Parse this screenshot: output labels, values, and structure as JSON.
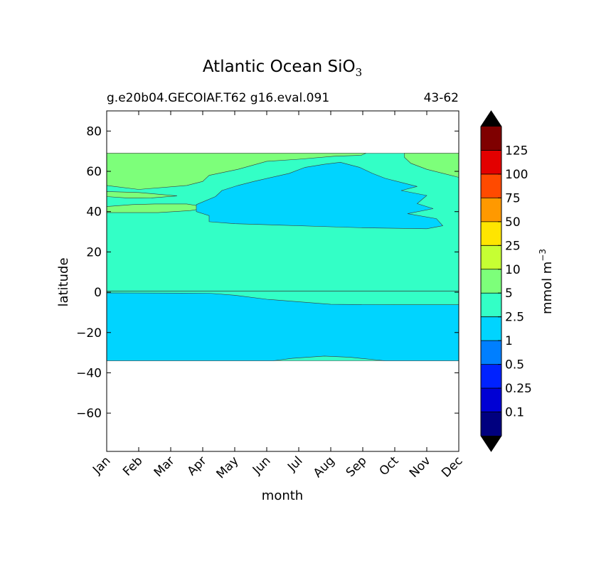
{
  "chart_data": {
    "type": "contour",
    "title": "Atlantic Ocean SiO",
    "title_subscript": "3",
    "subtitle_left": "g.e20b04.GECOIAF.T62 g16.eval.091",
    "subtitle_right": "43-62",
    "xlabel": "month",
    "ylabel": "latitude",
    "x_categories": [
      "Jan",
      "Feb",
      "Mar",
      "Apr",
      "May",
      "Jun",
      "Jul",
      "Aug",
      "Sep",
      "Oct",
      "Nov",
      "Dec"
    ],
    "yticks": [
      80,
      60,
      40,
      20,
      0,
      -20,
      -40,
      -60
    ],
    "ytick_labels": [
      "80",
      "60",
      "40",
      "20",
      "0",
      "−20",
      "−40",
      "−60"
    ],
    "ylim": [
      -79,
      90
    ],
    "data_extent": {
      "lat_min": -34,
      "lat_max": 69
    },
    "regions": [
      {
        "level": "2.5-5",
        "color": "#33ffc6",
        "note": "background fill from -34 to 69",
        "points": [
          [
            1,
            69
          ],
          [
            12,
            69
          ],
          [
            12,
            -34
          ],
          [
            1,
            -34
          ]
        ]
      },
      {
        "level": "5-10",
        "color": "#7dff7a",
        "note": "northern high latitude band",
        "points": [
          [
            1,
            69
          ],
          [
            9.1,
            69
          ],
          [
            8.95,
            68
          ],
          [
            8.1,
            67.5
          ],
          [
            7,
            66
          ],
          [
            6,
            65
          ],
          [
            5.1,
            61
          ],
          [
            4.2,
            58
          ],
          [
            4.0,
            55
          ],
          [
            3.5,
            53
          ],
          [
            2,
            51
          ],
          [
            1,
            53
          ]
        ]
      },
      {
        "level": "5-10",
        "color": "#7dff7a",
        "note": "north-eastern corner",
        "points": [
          [
            10.3,
            69
          ],
          [
            12,
            69
          ],
          [
            12,
            57
          ],
          [
            11,
            61
          ],
          [
            10.5,
            64
          ],
          [
            10.3,
            67
          ]
        ]
      },
      {
        "level": "5-10",
        "color": "#7dff7a",
        "note": "thin tongue near 48N",
        "points": [
          [
            1,
            50
          ],
          [
            2,
            49.5
          ],
          [
            3.2,
            47.8
          ],
          [
            2.4,
            46.8
          ],
          [
            1.7,
            46.7
          ],
          [
            1,
            47.5
          ]
        ]
      },
      {
        "level": "5-10",
        "color": "#7dff7a",
        "note": "lobe near 42N",
        "points": [
          [
            1,
            39.5
          ],
          [
            2.6,
            39.5
          ],
          [
            3.6,
            40.5
          ],
          [
            4.2,
            42
          ],
          [
            3.5,
            43.8
          ],
          [
            2.5,
            43.8
          ],
          [
            1.8,
            43.5
          ],
          [
            1,
            42.5
          ]
        ]
      },
      {
        "level": "1-2.5",
        "color": "#00d4ff",
        "note": "North Atlantic subtropical gyre",
        "points": [
          [
            4.6,
            50.5
          ],
          [
            5.1,
            53
          ],
          [
            5.6,
            55
          ],
          [
            6.7,
            59
          ],
          [
            7.2,
            62
          ],
          [
            7.8,
            63.5
          ],
          [
            8.3,
            64.5
          ],
          [
            8.9,
            62
          ],
          [
            9.3,
            59
          ],
          [
            9.7,
            56.5
          ],
          [
            10.7,
            52.5
          ],
          [
            10.2,
            50.5
          ],
          [
            11.0,
            48
          ],
          [
            10.7,
            44
          ],
          [
            11.2,
            41.5
          ],
          [
            10.4,
            39
          ],
          [
            11.3,
            36.5
          ],
          [
            11.5,
            33
          ],
          [
            11.0,
            31.5
          ],
          [
            9.0,
            32
          ],
          [
            8.0,
            32.5
          ],
          [
            6.0,
            33.5
          ],
          [
            5.0,
            34
          ],
          [
            4.2,
            35
          ],
          [
            4.2,
            38
          ],
          [
            3.8,
            40
          ],
          [
            3.8,
            43.5
          ],
          [
            4.4,
            47.5
          ]
        ]
      },
      {
        "level": "1-2.5",
        "color": "#00d4ff",
        "note": "tropical and South Atlantic band",
        "points": [
          [
            1,
            -0.3
          ],
          [
            4.2,
            -0.5
          ],
          [
            5.0,
            -1.5
          ],
          [
            6.0,
            -3.5
          ],
          [
            8.0,
            -6
          ],
          [
            10.0,
            -6.2
          ],
          [
            12,
            -6.2
          ],
          [
            12,
            -34
          ],
          [
            9.7,
            -34
          ],
          [
            8.6,
            -32.3
          ],
          [
            7.8,
            -31.7
          ],
          [
            6.8,
            -32.8
          ],
          [
            6.2,
            -34
          ],
          [
            1,
            -34
          ]
        ]
      }
    ],
    "colorbar": {
      "label": "mmol m",
      "label_superscript": "−3",
      "colors": [
        "#00007f",
        "#0000d4",
        "#0022ff",
        "#007fff",
        "#00d4ff",
        "#33ffc6",
        "#7dff7a",
        "#c6ff33",
        "#ffe500",
        "#ff9900",
        "#ff4a00",
        "#e30000",
        "#7f0000"
      ],
      "tick_labels": [
        "0.1",
        "0.25",
        "0.5",
        "1",
        "2.5",
        "5",
        "10",
        "25",
        "50",
        "75",
        "100",
        "125"
      ],
      "extend_low_color": "#000000",
      "extend_high_color": "#000000"
    }
  }
}
